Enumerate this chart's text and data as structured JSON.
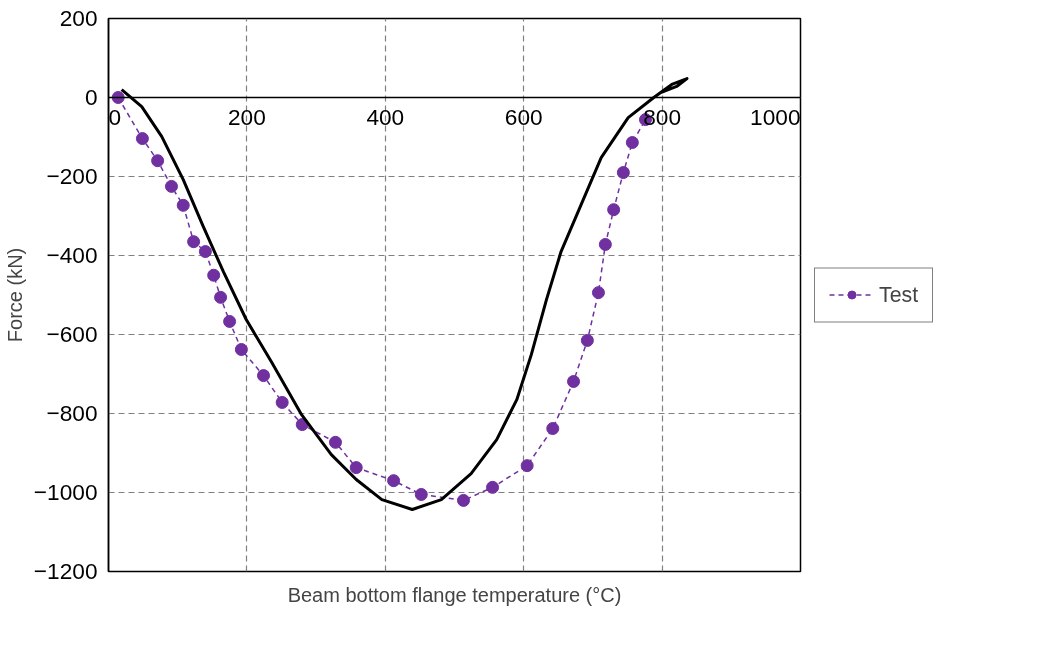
{
  "chart_data": {
    "type": "line",
    "xlabel": "Beam bottom flange temperature (°C)",
    "ylabel": "Force (kN)",
    "xlim": [
      0,
      1000
    ],
    "xticks": [
      0,
      200,
      400,
      600,
      800,
      1000
    ],
    "ylim": [
      -1200,
      200
    ],
    "yticks": [
      -1200,
      -1000,
      -800,
      -600,
      -400,
      -200,
      0,
      200
    ],
    "grid": true,
    "legend": "right",
    "series": [
      {
        "name": "Test",
        "color": "#7030a0",
        "marker": "circle",
        "line_style": "dashed",
        "x": [
          14,
          49,
          71,
          91,
          108,
          123,
          140,
          152,
          162,
          175,
          192,
          224,
          251,
          280,
          328,
          358,
          412,
          452,
          513,
          555,
          605,
          642,
          672,
          692,
          708,
          718,
          730,
          744,
          757,
          776
        ],
        "values": [
          0,
          -104,
          -160,
          -225,
          -273,
          -365,
          -390,
          -450,
          -506,
          -567,
          -638,
          -704,
          -772,
          -828,
          -873,
          -937,
          -970,
          -1005,
          -1020,
          -987,
          -932,
          -838,
          -719,
          -615,
          -494,
          -372,
          -284,
          -190,
          -114,
          -56
        ]
      },
      {
        "color": "#000000",
        "marker": "none",
        "line_style": "solid",
        "x": [
          19,
          48,
          77,
          108,
          137,
          166,
          199,
          236,
          279,
          322,
          358,
          395,
          439,
          481,
          524,
          561,
          590,
          611,
          633,
          654,
          683,
          712,
          751,
          788,
          814,
          836,
          821,
          799
        ],
        "values": [
          20,
          -23,
          -99,
          -208,
          -327,
          -441,
          -562,
          -671,
          -803,
          -904,
          -967,
          -1018,
          -1043,
          -1018,
          -952,
          -866,
          -765,
          -651,
          -511,
          -390,
          -271,
          -152,
          -51,
          0,
          33,
          48,
          28,
          13
        ]
      }
    ]
  }
}
